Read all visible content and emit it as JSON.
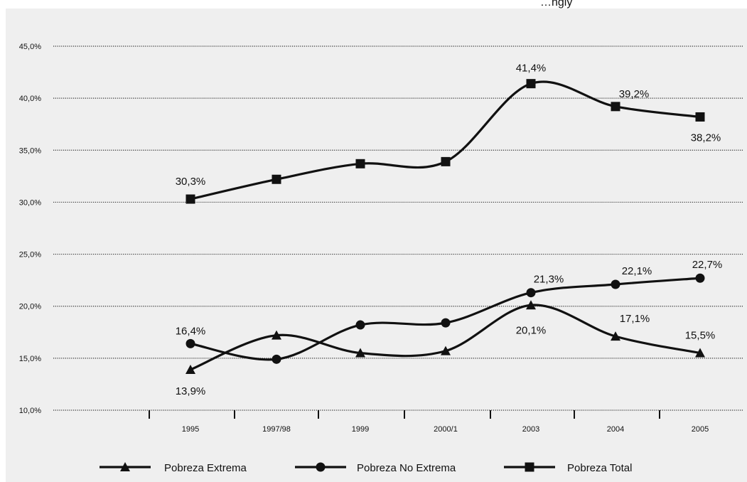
{
  "chart_data": {
    "type": "line",
    "title": "…ngly",
    "categories": [
      "1995",
      "1997/98",
      "1999",
      "2000/1",
      "2003",
      "2004",
      "2005"
    ],
    "ylim": [
      10,
      45
    ],
    "yticks": [
      "10,0%",
      "15,0%",
      "20,0%",
      "25,0%",
      "30,0%",
      "35,0%",
      "40,0%",
      "45,0%"
    ],
    "ytick_values": [
      10,
      15,
      20,
      25,
      30,
      35,
      40,
      45
    ],
    "grid": true,
    "legend_position": "bottom",
    "series": [
      {
        "name": "Pobreza Extrema",
        "marker": "triangle",
        "values": [
          13.9,
          17.2,
          15.5,
          15.7,
          20.1,
          17.1,
          15.5
        ],
        "labels": [
          "13,9%",
          "",
          "",
          "",
          "20,1%",
          "17,1%",
          "15,5%"
        ]
      },
      {
        "name": "Pobreza No Extrema",
        "marker": "circle",
        "values": [
          16.4,
          14.9,
          18.2,
          18.4,
          21.3,
          22.1,
          22.7
        ],
        "labels": [
          "16,4%",
          "",
          "",
          "",
          "21,3%",
          "22,1%",
          "22,7%"
        ]
      },
      {
        "name": "Pobreza Total",
        "marker": "square",
        "values": [
          30.3,
          32.2,
          33.7,
          33.9,
          41.4,
          39.2,
          38.2
        ],
        "labels": [
          "30,3%",
          "",
          "",
          "",
          "41,4%",
          "39,2%",
          "38,2%"
        ]
      }
    ],
    "colors": {
      "plot_background": "#efefef",
      "line": "#111111",
      "grid": "#333333"
    }
  }
}
